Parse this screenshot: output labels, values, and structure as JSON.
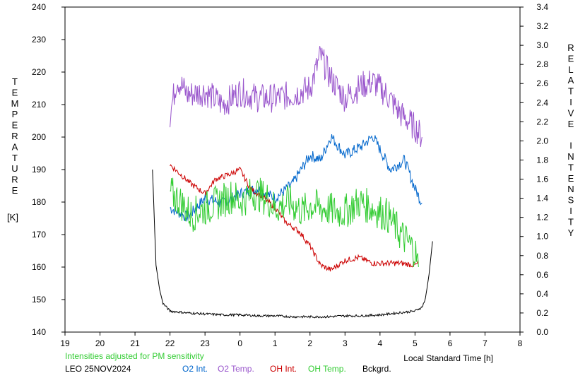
{
  "chart_data": {
    "type": "line",
    "x_axis": {
      "label": "Local Standard Time [h]",
      "min": 19,
      "max": 32,
      "tick_values": [
        19,
        20,
        21,
        22,
        23,
        24,
        25,
        26,
        27,
        28,
        29,
        30,
        31,
        32
      ],
      "tick_labels": [
        "19",
        "20",
        "21",
        "22",
        "23",
        "0",
        "1",
        "2",
        "3",
        "4",
        "5",
        "6",
        "7",
        "8"
      ]
    },
    "y_left": {
      "label": "TEMPERATURE",
      "unit": "[K]",
      "min": 140,
      "max": 240,
      "ticks": [
        140,
        150,
        160,
        170,
        180,
        190,
        200,
        210,
        220,
        230,
        240
      ]
    },
    "y_right": {
      "label": "RELATIVE INTENSITY",
      "min": 0.0,
      "max": 3.4,
      "ticks": [
        "0.0",
        "0.2",
        "0.4",
        "0.6",
        "0.8",
        "1.0",
        "1.2",
        "1.4",
        "1.6",
        "1.8",
        "2.0",
        "2.2",
        "2.4",
        "2.6",
        "2.8",
        "3.0",
        "3.2",
        "3.4"
      ]
    },
    "note": "Intensities adjusted for PM sensitivity",
    "station_date": "LEO 25NOV2024",
    "legend_placement": "bottom",
    "series": [
      {
        "name": "O2 Int.",
        "axis": "right",
        "color": "#0066cc",
        "x": [
          22.0,
          22.5,
          23.0,
          23.5,
          24.0,
          24.5,
          25.0,
          25.5,
          26.0,
          26.3,
          26.6,
          27.0,
          27.5,
          27.8,
          28.3,
          28.7,
          29.0,
          29.2
        ],
        "y": [
          1.3,
          1.2,
          1.4,
          1.35,
          1.45,
          1.5,
          1.4,
          1.55,
          1.85,
          1.8,
          2.05,
          1.85,
          1.95,
          2.05,
          1.7,
          1.8,
          1.5,
          1.35
        ]
      },
      {
        "name": "O2 Temp.",
        "axis": "left",
        "color": "#9955cc",
        "x": [
          22.0,
          22.2,
          22.5,
          23.0,
          23.5,
          24.0,
          24.5,
          25.0,
          25.5,
          26.0,
          26.3,
          26.6,
          27.0,
          27.5,
          27.8,
          28.2,
          28.6,
          29.0,
          29.2
        ],
        "y": [
          207,
          218,
          213,
          214,
          210,
          214,
          212,
          212,
          213,
          215,
          225,
          218,
          212,
          216,
          217,
          213,
          207,
          203,
          200
        ]
      },
      {
        "name": "OH Int.",
        "axis": "right",
        "color": "#cc0000",
        "x": [
          22.0,
          22.3,
          22.6,
          23.0,
          23.3,
          23.7,
          24.0,
          24.3,
          24.7,
          25.0,
          25.3,
          25.7,
          26.0,
          26.3,
          26.6,
          27.0,
          27.4,
          27.8,
          28.2,
          28.6,
          29.0,
          29.1
        ],
        "y": [
          1.75,
          1.65,
          1.55,
          1.45,
          1.6,
          1.65,
          1.7,
          1.5,
          1.4,
          1.3,
          1.15,
          1.05,
          0.9,
          0.7,
          0.65,
          0.75,
          0.78,
          0.72,
          0.72,
          0.72,
          0.7,
          0.72
        ]
      },
      {
        "name": "OH Temp.",
        "axis": "left",
        "color": "#33cc33",
        "x": [
          22.0,
          22.3,
          22.6,
          23.0,
          23.4,
          23.8,
          24.0,
          24.4,
          24.8,
          25.0,
          25.4,
          25.8,
          26.0,
          26.4,
          26.8,
          27.0,
          27.4,
          27.8,
          28.2,
          28.6,
          29.0,
          29.1
        ],
        "y": [
          183,
          180,
          176,
          178,
          180,
          182,
          180,
          183,
          181,
          178,
          180,
          177,
          179,
          178,
          177,
          177,
          180,
          178,
          176,
          170,
          165,
          160
        ]
      },
      {
        "name": "Bckgrd.",
        "axis": "right",
        "color": "#000000",
        "x": [
          21.5,
          21.55,
          21.6,
          21.7,
          21.8,
          22.0,
          22.5,
          23.0,
          23.5,
          24.0,
          24.5,
          25.0,
          25.5,
          26.0,
          26.5,
          27.0,
          27.5,
          28.0,
          28.5,
          29.0,
          29.2,
          29.3,
          29.4,
          29.5
        ],
        "y": [
          1.7,
          1.2,
          0.7,
          0.45,
          0.3,
          0.22,
          0.2,
          0.19,
          0.18,
          0.18,
          0.17,
          0.17,
          0.16,
          0.16,
          0.16,
          0.17,
          0.17,
          0.18,
          0.2,
          0.22,
          0.26,
          0.35,
          0.6,
          0.95
        ]
      }
    ]
  }
}
